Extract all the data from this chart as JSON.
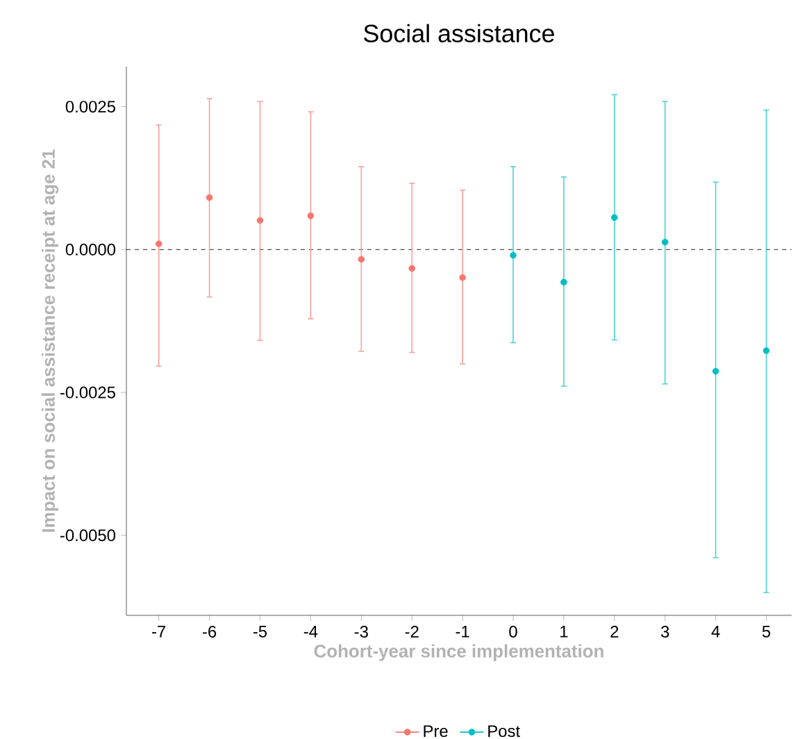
{
  "chart_data": {
    "type": "scatter",
    "title": "Social assistance",
    "xlabel": "Cohort-year since implementation",
    "ylabel": "Impact on social assistance receipt at age 21",
    "series": [
      {
        "name": "Pre",
        "color": "#f8766d",
        "x": [
          -7,
          -6,
          -5,
          -4,
          -3,
          -2,
          -1
        ],
        "values": [
          0.0001,
          0.00091,
          0.00051,
          0.00059,
          -0.00017,
          -0.00033,
          -0.00049
        ],
        "errors": [
          [
            -0.00204,
            0.00218
          ],
          [
            -0.00083,
            0.00264
          ],
          [
            -0.00159,
            0.00259
          ],
          [
            -0.00121,
            0.00241
          ],
          [
            -0.00178,
            0.00145
          ],
          [
            -0.0018,
            0.00116
          ],
          [
            -0.002,
            0.00104
          ]
        ]
      },
      {
        "name": "Post",
        "color": "#00bfc4",
        "x": [
          0,
          1,
          2,
          3,
          4,
          5
        ],
        "values": [
          -0.0001,
          -0.00057,
          0.00056,
          0.00013,
          -0.00213,
          -0.00177
        ],
        "errors": [
          [
            -0.00163,
            0.00145
          ],
          [
            -0.00239,
            0.00127
          ],
          [
            -0.00158,
            0.00271
          ],
          [
            -0.00235,
            0.00259
          ],
          [
            -0.00539,
            0.00118
          ],
          [
            -0.006,
            0.00244
          ]
        ]
      }
    ],
    "xlim": [
      -7.64,
      5.5
    ],
    "xticks": [
      -7,
      -6,
      -5,
      -4,
      -3,
      -2,
      -1,
      0,
      1,
      2,
      3,
      4,
      5
    ],
    "ylim": [
      -0.0064,
      0.0032
    ],
    "yticks": [
      {
        "value": -0.005,
        "label": "-0.0050"
      },
      {
        "value": -0.0025,
        "label": "-0.0025"
      },
      {
        "value": 0,
        "label": "0.0000"
      },
      0.0025
    ],
    "ref_lines": [
      {
        "axis": "y",
        "value": 0,
        "line_style": "dashed"
      }
    ],
    "legend": "bottom",
    "grid": false,
    "marker": "circle"
  }
}
